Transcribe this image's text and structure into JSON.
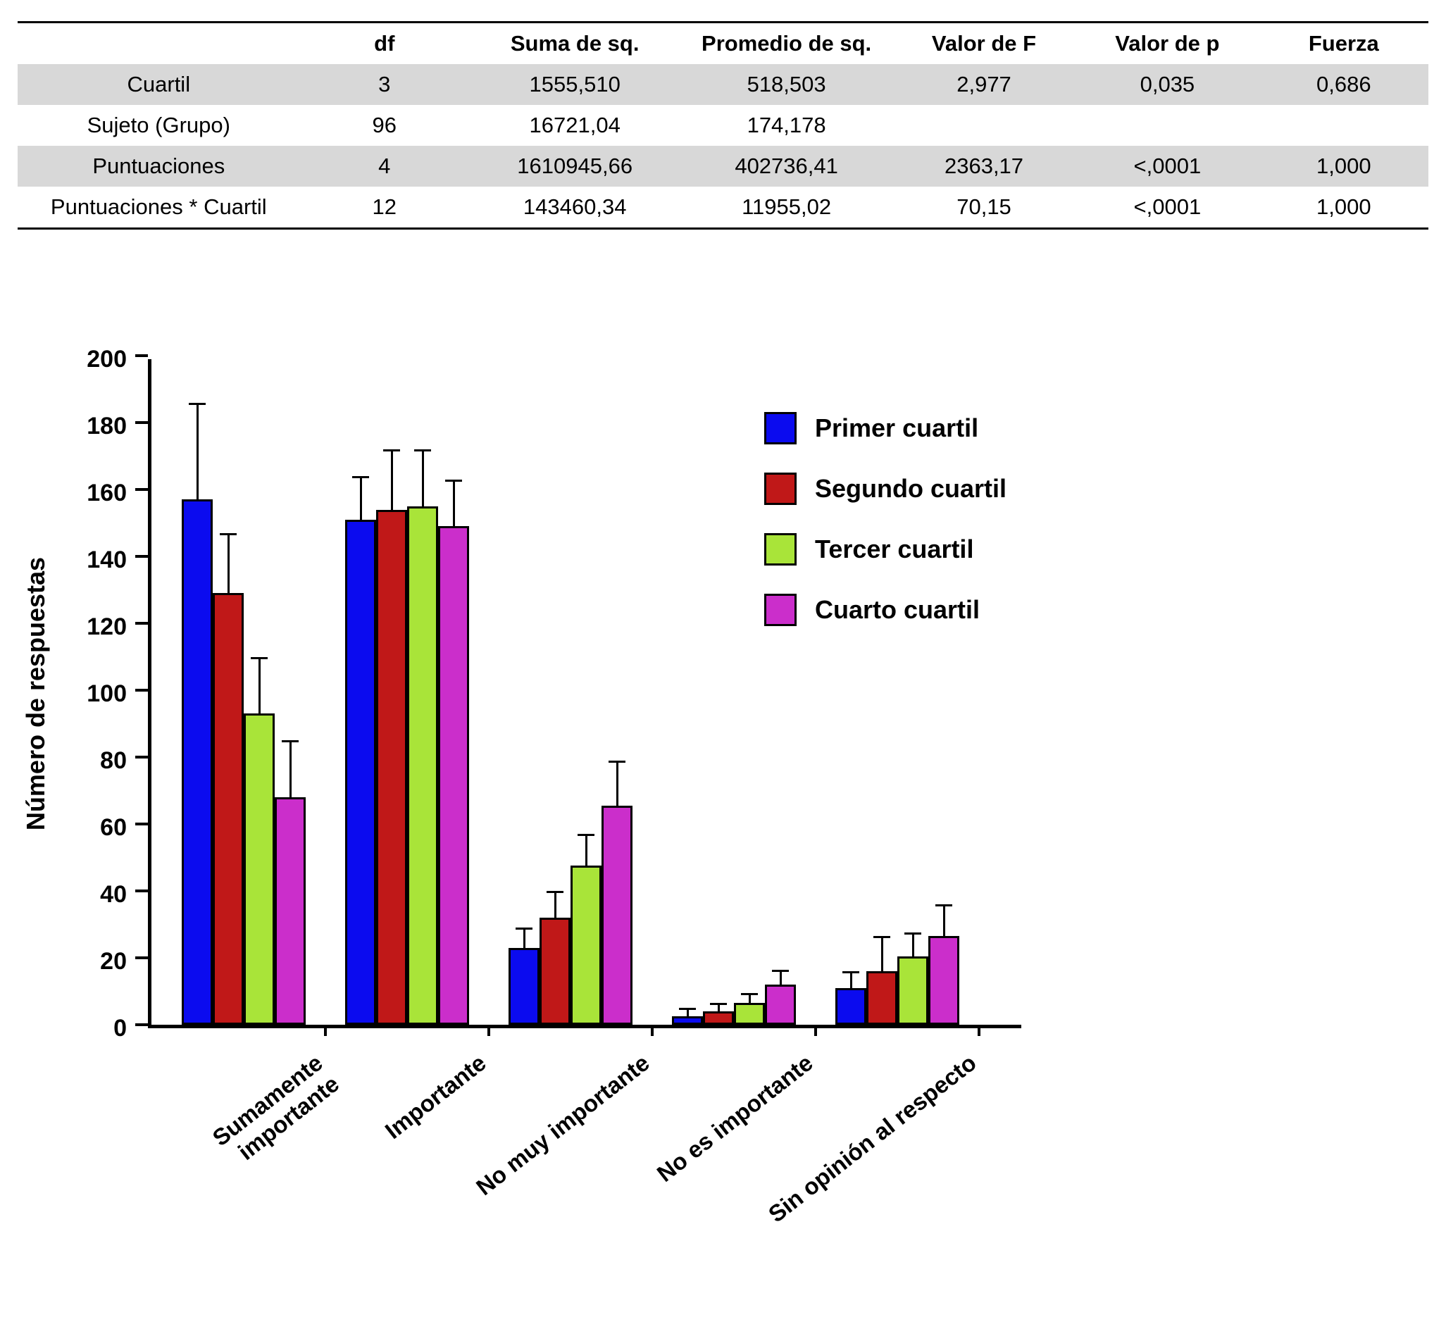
{
  "table": {
    "headers": [
      "",
      "df",
      "Suma de sq.",
      "Promedio de sq.",
      "Valor de F",
      "Valor de p",
      "Fuerza"
    ],
    "rows": [
      {
        "label": "Cuartil",
        "values": [
          "3",
          "1555,510",
          "518,503",
          "2,977",
          "0,035",
          "0,686"
        ],
        "shaded": true
      },
      {
        "label": "Sujeto (Grupo)",
        "values": [
          "96",
          "16721,04",
          "174,178",
          "",
          "",
          ""
        ],
        "shaded": false
      },
      {
        "label": "Puntuaciones",
        "values": [
          "4",
          "1610945,66",
          "402736,41",
          "2363,17",
          "<,0001",
          "1,000"
        ],
        "shaded": true
      },
      {
        "label": "Puntuaciones * Cuartil",
        "values": [
          "12",
          "143460,34",
          "11955,02",
          "70,15",
          "<,0001",
          "1,000"
        ],
        "shaded": false
      }
    ]
  },
  "chart_data": {
    "type": "bar",
    "title": "",
    "xlabel": "",
    "ylabel": "Número de respuestas",
    "ylim": [
      0,
      200
    ],
    "ytick_step": 20,
    "grid": false,
    "legend_position": "upper-right-inside",
    "categories": [
      "Sumamente\nimportante",
      "Importante",
      "No muy importante",
      "No es importante",
      "Sin opinión al respecto"
    ],
    "series": [
      {
        "name": "Primer cuartil",
        "color": "#0b0bef",
        "values": [
          157,
          151,
          23,
          2.5,
          11
        ],
        "errors": [
          29,
          13,
          6,
          2.5,
          5
        ]
      },
      {
        "name": "Segundo cuartil",
        "color": "#c01818",
        "values": [
          129,
          154,
          32,
          4,
          16
        ],
        "errors": [
          18,
          18,
          8,
          2.5,
          10.5
        ]
      },
      {
        "name": "Tercer cuartil",
        "color": "#a9e439",
        "values": [
          93,
          155,
          47.5,
          6.5,
          20.5
        ],
        "errors": [
          17,
          17,
          9.5,
          3,
          7
        ]
      },
      {
        "name": "Cuarto cuartil",
        "color": "#cb2ecb",
        "values": [
          68,
          149,
          65.5,
          12,
          26.5
        ],
        "errors": [
          17,
          14,
          13.5,
          4.5,
          9.5
        ]
      }
    ]
  }
}
